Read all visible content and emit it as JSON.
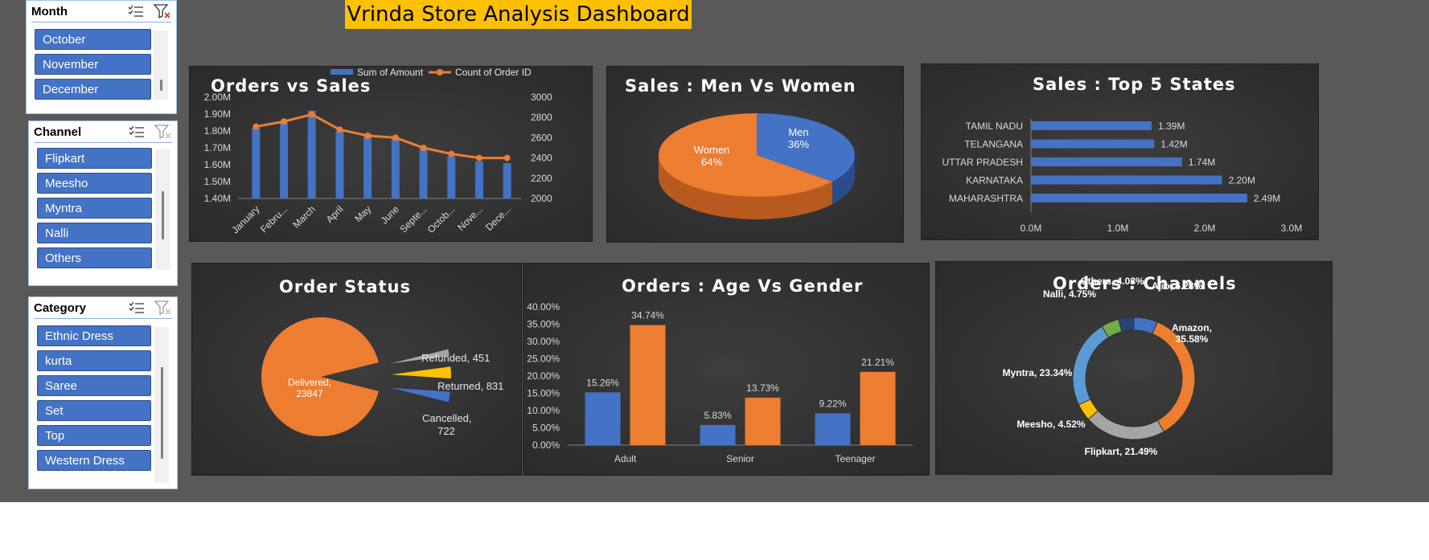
{
  "dashboard_title": "Vrinda Store Analysis Dashboard",
  "colors": {
    "blue": "#4472c4",
    "orange": "#ed7d31",
    "gray": "#a5a5a5",
    "yellow": "#ffc000",
    "banner": "#ffc000"
  },
  "slicers": {
    "month": {
      "title": "Month",
      "items": [
        "October",
        "November",
        "December"
      ]
    },
    "channel": {
      "title": "Channel",
      "items": [
        "Flipkart",
        "Meesho",
        "Myntra",
        "Nalli",
        "Others"
      ]
    },
    "category": {
      "title": "Category",
      "items": [
        "Ethnic Dress",
        "kurta",
        "Saree",
        "Set",
        "Top",
        "Western Dress"
      ]
    }
  },
  "chart_data": [
    {
      "id": "orders_vs_sales",
      "type": "bar",
      "title": "Orders vs Sales",
      "categories": [
        "January",
        "Febru...",
        "March",
        "April",
        "May",
        "June",
        "Septe...",
        "Octob...",
        "Nove...",
        "Dece..."
      ],
      "series": [
        {
          "name": "Sum of Amount",
          "type": "bar",
          "axis": "left",
          "values": [
            1.82,
            1.85,
            1.92,
            1.8,
            1.78,
            1.76,
            1.7,
            1.65,
            1.62,
            1.61
          ]
        },
        {
          "name": "Count of Order ID",
          "type": "line",
          "axis": "right",
          "values": [
            2710,
            2760,
            2830,
            2680,
            2620,
            2600,
            2500,
            2440,
            2400,
            2400
          ]
        }
      ],
      "y_left": {
        "min": 1.4,
        "max": 2.0,
        "ticks": [
          "1.40M",
          "1.50M",
          "1.60M",
          "1.70M",
          "1.80M",
          "1.90M",
          "2.00M"
        ]
      },
      "y_right": {
        "min": 2000,
        "max": 3000,
        "ticks": [
          "2000",
          "2200",
          "2400",
          "2600",
          "2800",
          "3000"
        ]
      }
    },
    {
      "id": "men_vs_women",
      "type": "pie",
      "title": "Sales : Men Vs Women",
      "slices": [
        {
          "label": "Men",
          "pct_label": "36%",
          "value": 36
        },
        {
          "label": "Women",
          "pct_label": "64%",
          "value": 64
        }
      ]
    },
    {
      "id": "top5_states",
      "type": "bar",
      "orientation": "horizontal",
      "title": "Sales : Top 5 States",
      "categories": [
        "TAMIL NADU",
        "TELANGANA",
        "UTTAR PRADESH",
        "KARNATAKA",
        "MAHARASHTRA"
      ],
      "values": [
        1.39,
        1.42,
        1.74,
        2.2,
        2.49
      ],
      "data_labels": [
        "1.39M",
        "1.42M",
        "1.74M",
        "2.20M",
        "2.49M"
      ],
      "xlim": [
        0,
        3
      ],
      "x_ticks": [
        "0.0M",
        "1.0M",
        "2.0M",
        "3.0M"
      ]
    },
    {
      "id": "order_status",
      "type": "pie",
      "title": "Order Status",
      "slices": [
        {
          "label": "Delivered,",
          "count": "23847",
          "value": 23847
        },
        {
          "label": "Refunded, 451",
          "value": 451
        },
        {
          "label": "Returned, 831",
          "value": 831
        },
        {
          "label": "Cancelled,",
          "count": "722",
          "value": 722
        }
      ]
    },
    {
      "id": "age_vs_gender",
      "type": "bar",
      "title": "Orders : Age Vs Gender",
      "categories": [
        "Adult",
        "Senior",
        "Teenager"
      ],
      "series": [
        {
          "values": [
            15.26,
            5.83,
            9.22
          ],
          "labels": [
            "15.26%",
            "5.83%",
            "9.22%"
          ]
        },
        {
          "values": [
            34.74,
            13.73,
            21.21
          ],
          "labels": [
            "34.74%",
            "13.73%",
            "21.21%"
          ]
        }
      ],
      "ylim": [
        0,
        40
      ],
      "y_ticks": [
        "0.00%",
        "5.00%",
        "10.00%",
        "15.00%",
        "20.00%",
        "25.00%",
        "30.00%",
        "35.00%",
        "40.00%"
      ]
    },
    {
      "id": "channels",
      "type": "pie",
      "style": "doughnut",
      "title": "Orders : Channels",
      "slices": [
        {
          "label": "Ajio, 6.28%",
          "value": 6.28
        },
        {
          "label": "Amazon,",
          "label2": "35.58%",
          "value": 35.58
        },
        {
          "label": "Flipkart, 21.49%",
          "value": 21.49
        },
        {
          "label": "Meesho, 4.52%",
          "value": 4.52
        },
        {
          "label": "Myntra, 23.34%",
          "value": 23.34
        },
        {
          "label": "Nalli, 4.75%",
          "value": 4.75
        },
        {
          "label": "Others, 4.03%",
          "value": 4.03
        }
      ]
    }
  ]
}
